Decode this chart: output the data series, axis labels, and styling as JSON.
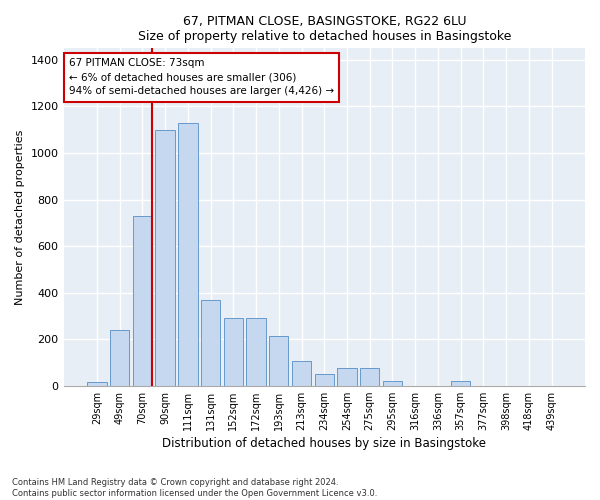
{
  "title1": "67, PITMAN CLOSE, BASINGSTOKE, RG22 6LU",
  "title2": "Size of property relative to detached houses in Basingstoke",
  "xlabel": "Distribution of detached houses by size in Basingstoke",
  "ylabel": "Number of detached properties",
  "categories": [
    "29sqm",
    "49sqm",
    "70sqm",
    "90sqm",
    "111sqm",
    "131sqm",
    "152sqm",
    "172sqm",
    "193sqm",
    "213sqm",
    "234sqm",
    "254sqm",
    "275sqm",
    "295sqm",
    "316sqm",
    "336sqm",
    "357sqm",
    "377sqm",
    "398sqm",
    "418sqm",
    "439sqm"
  ],
  "bar_values": [
    15,
    240,
    730,
    1100,
    1130,
    370,
    290,
    290,
    215,
    105,
    50,
    75,
    75,
    20,
    0,
    0,
    20,
    0,
    0,
    0,
    0
  ],
  "bar_color": "#c5d8ef",
  "bar_edge_color": "#6699cc",
  "background_color": "#e8eef5",
  "grid_color": "#ffffff",
  "vline_color": "#cc0000",
  "vline_x": 2.43,
  "annotation_text": "67 PITMAN CLOSE: 73sqm\n← 6% of detached houses are smaller (306)\n94% of semi-detached houses are larger (4,426) →",
  "annotation_box_color": "#ffffff",
  "annotation_box_edge": "#cc0000",
  "ylim": [
    0,
    1450
  ],
  "yticks": [
    0,
    200,
    400,
    600,
    800,
    1000,
    1200,
    1400
  ],
  "footer1": "Contains HM Land Registry data © Crown copyright and database right 2024.",
  "footer2": "Contains public sector information licensed under the Open Government Licence v3.0."
}
